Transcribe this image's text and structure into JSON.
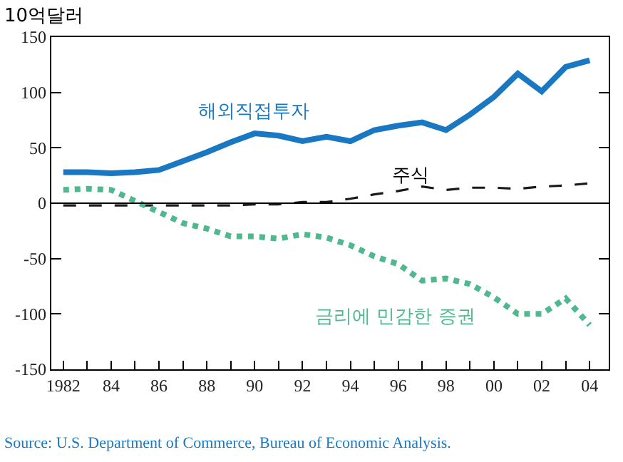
{
  "chart_data": {
    "type": "line",
    "ylabel": "10억달러",
    "x": [
      1982,
      1983,
      1984,
      1985,
      1986,
      1987,
      1988,
      1989,
      1990,
      1991,
      1992,
      1993,
      1994,
      1995,
      1996,
      1997,
      1998,
      1999,
      2000,
      2001,
      2002,
      2003,
      2004
    ],
    "series": [
      {
        "name": "해외직접투자",
        "color": "#1a78c2",
        "line_style": "solid",
        "values": [
          28,
          28,
          27,
          28,
          30,
          38,
          46,
          55,
          63,
          61,
          56,
          60,
          56,
          66,
          70,
          73,
          66,
          80,
          96,
          117,
          101,
          123,
          129
        ]
      },
      {
        "name": "주식",
        "color": "#1a1a1a",
        "line_style": "dashed",
        "values": [
          -2,
          -2,
          -2,
          -2,
          -2,
          -2,
          -2,
          -2,
          -1,
          -1,
          1,
          1,
          4,
          8,
          11,
          15,
          12,
          14,
          14,
          13,
          15,
          16,
          18
        ]
      },
      {
        "name": "금리에 민감한 증권",
        "color": "#4fb88e",
        "line_style": "dotted",
        "values": [
          12,
          13,
          12,
          2,
          -8,
          -18,
          -23,
          -30,
          -30,
          -32,
          -28,
          -31,
          -38,
          -48,
          -55,
          -70,
          -68,
          -73,
          -85,
          -100,
          -100,
          -86,
          -110
        ]
      }
    ],
    "xlim": [
      1981.5,
      2004.8
    ],
    "xticks": [
      {
        "value": 1982,
        "label": "1982"
      },
      {
        "value": 1983,
        "label": null
      },
      {
        "value": 1984,
        "label": "84"
      },
      {
        "value": 1985,
        "label": null
      },
      {
        "value": 1986,
        "label": "86"
      },
      {
        "value": 1987,
        "label": null
      },
      {
        "value": 1988,
        "label": "88"
      },
      {
        "value": 1989,
        "label": null
      },
      {
        "value": 1990,
        "label": "90"
      },
      {
        "value": 1991,
        "label": null
      },
      {
        "value": 1992,
        "label": "92"
      },
      {
        "value": 1993,
        "label": null
      },
      {
        "value": 1994,
        "label": "94"
      },
      {
        "value": 1995,
        "label": null
      },
      {
        "value": 1996,
        "label": "96"
      },
      {
        "value": 1997,
        "label": null
      },
      {
        "value": 1998,
        "label": "98"
      },
      {
        "value": 1999,
        "label": null
      },
      {
        "value": 2000,
        "label": "00"
      },
      {
        "value": 2001,
        "label": null
      },
      {
        "value": 2002,
        "label": "02"
      },
      {
        "value": 2003,
        "label": null
      },
      {
        "value": 2004,
        "label": "04"
      }
    ],
    "ylim": [
      -150,
      150
    ],
    "yticks": [
      -150,
      -100,
      -50,
      0,
      50,
      100,
      150
    ],
    "ref_lines": [
      {
        "axis": "y",
        "value": 0,
        "color": "#000000"
      }
    ],
    "grid": false,
    "legend": false,
    "marker": "none",
    "annotations": [
      "Source: U.S. Department of Commerce, Bureau of Economic Analysis."
    ]
  }
}
